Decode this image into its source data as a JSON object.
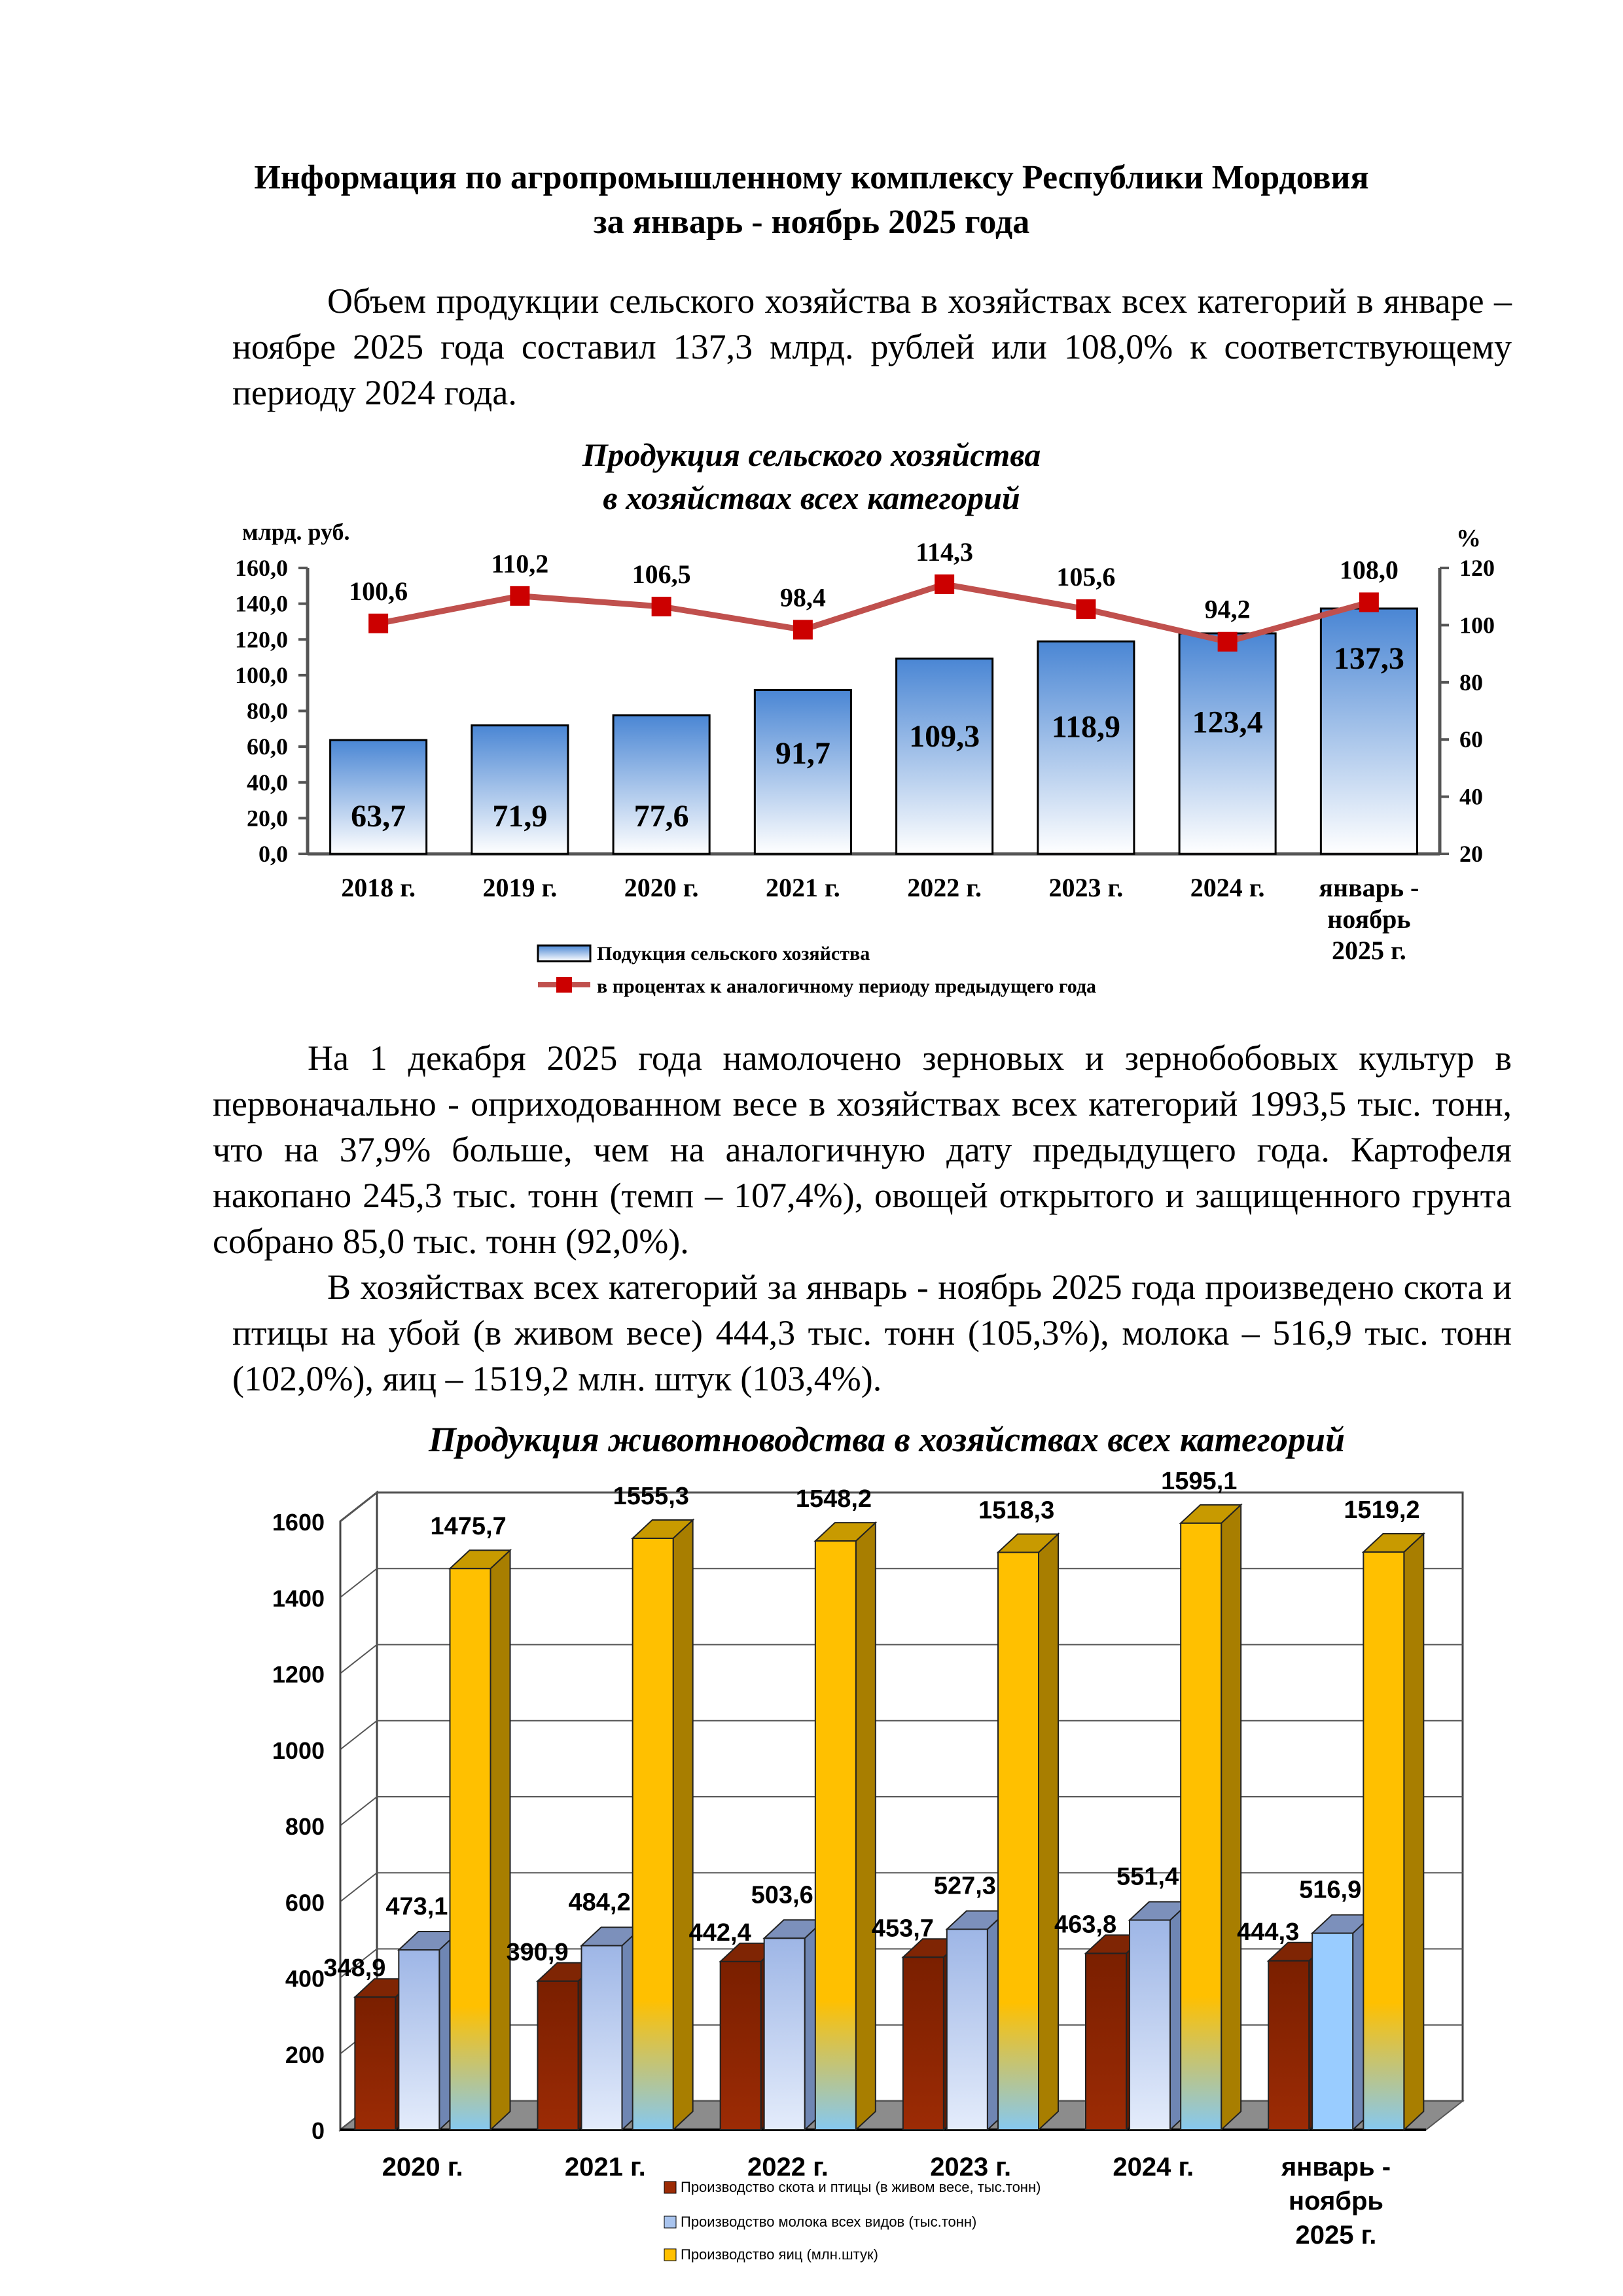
{
  "document": {
    "title_line1": "Информация по агропромышленному комплексу Республики Мордовия",
    "title_line2": "за январь - ноябрь 2025 года",
    "para1": "Объем продукции сельского хозяйства в хозяйствах всех категорий в январе – ноябре 2025 года составил 137,3 млрд. рублей или 108,0% к соответствующему периоду 2024 года.",
    "para2": "На 1 декабря 2025 года намолочено зерновых и зернобобовых культур в первоначально - оприходованном весе в хозяйствах всех категорий 1993,5 тыс. тонн, что на 37,9% больше, чем на аналогичную дату предыдущего года. Картофеля накопано 245,3 тыс. тонн (темп – 107,4%), овощей открытого и защищенного грунта собрано 85,0 тыс. тонн (92,0%).",
    "para3": "В хозяйствах всех категорий за январь - ноябрь 2025 года произведено скота и птицы на убой (в живом весе) 444,3 тыс. тонн (105,3%), молока – 516,9 тыс. тонн (102,0%), яиц – 1519,2 млн. штук (103,4%)."
  },
  "chart_data": [
    {
      "type": "bar",
      "title_line1": "Продукция сельского хозяйства",
      "title_line2": "в хозяйствах всех категорий",
      "ylabel": "млрд. руб.",
      "y2label": "%",
      "ylim": [
        0,
        160
      ],
      "y2lim": [
        20,
        120
      ],
      "yticks": [
        "0,0",
        "20,0",
        "40,0",
        "60,0",
        "80,0",
        "100,0",
        "120,0",
        "140,0",
        "160,0"
      ],
      "y2ticks": [
        "20",
        "40",
        "60",
        "80",
        "100",
        "120"
      ],
      "categories": [
        "2018 г.",
        "2019 г.",
        "2020 г.",
        "2021 г.",
        "2022 г.",
        "2023 г.",
        "2024 г.",
        "январь -|ноябрь|2025 г."
      ],
      "series": [
        {
          "name": "Подукция сельского хозяйства",
          "kind": "bar",
          "values": [
            63.7,
            71.9,
            77.6,
            91.7,
            109.3,
            118.9,
            123.4,
            137.3
          ],
          "labels": [
            "63,7",
            "71,9",
            "77,6",
            "91,7",
            "109,3",
            "118,9",
            "123,4",
            "137,3"
          ],
          "color": "#4a86d4"
        },
        {
          "name": "в процентах к аналогичному периоду предыдущего года",
          "kind": "line",
          "axis": "right",
          "values": [
            100.6,
            110.2,
            106.5,
            98.4,
            114.3,
            105.6,
            94.2,
            108.0
          ],
          "labels": [
            "100,6",
            "110,2",
            "106,5",
            "98,4",
            "114,3",
            "105,6",
            "94,2",
            "108,0"
          ],
          "color": "#c0504d",
          "marker_color": "#cc0000"
        }
      ],
      "grid": false,
      "legend": "bottom"
    },
    {
      "type": "bar",
      "title": "Продукция животноводства в хозяйствах всех категорий",
      "ylim": [
        0,
        1600
      ],
      "yticks": [
        "0",
        "200",
        "400",
        "600",
        "800",
        "1000",
        "1200",
        "1400",
        "1600"
      ],
      "categories": [
        "2020 г.",
        "2021 г.",
        "2022 г.",
        "2023 г.",
        "2024 г.",
        "январь -|ноябрь|2025 г."
      ],
      "series": [
        {
          "name": "Производство скота и птицы (в живом весе, тыс.тонн)",
          "values": [
            348.9,
            390.9,
            442.4,
            453.7,
            463.8,
            444.3
          ],
          "labels": [
            "348,9",
            "390,9",
            "442,4",
            "453,7",
            "463,8",
            "444,3"
          ],
          "color": "#9c2b05"
        },
        {
          "name": "Производство молока всех видов (тыс.тонн)",
          "values": [
            473.1,
            484.2,
            503.6,
            527.3,
            551.4,
            516.9
          ],
          "labels": [
            "473,1",
            "484,2",
            "503,6",
            "527,3",
            "551,4",
            "516,9"
          ],
          "color": "#a9c4ee"
        },
        {
          "name": "Производство яиц (млн.штук)",
          "values": [
            1475.7,
            1555.3,
            1548.2,
            1518.3,
            1595.1,
            1519.2
          ],
          "labels": [
            "1475,7",
            "1555,3",
            "1548,2",
            "1518,3",
            "1595,1",
            "1519,2"
          ],
          "color": "#ffc000"
        }
      ],
      "grid": true,
      "legend": "bottom"
    }
  ]
}
